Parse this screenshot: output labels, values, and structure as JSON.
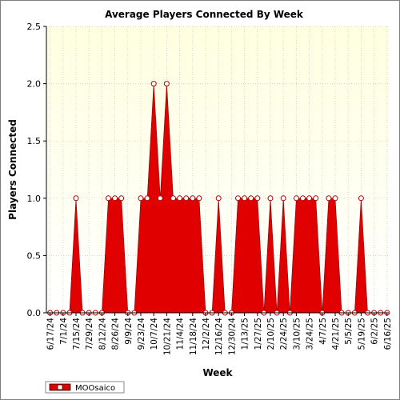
{
  "chart_data": {
    "type": "area",
    "title": "Average Players Connected By Week",
    "xlabel": "Week",
    "ylabel": "Players Connected",
    "ylim": [
      0,
      2.5
    ],
    "yticks": [
      "0.0",
      "0.5",
      "1.0",
      "1.5",
      "2.0",
      "2.5"
    ],
    "grid": true,
    "legend_position": "bottom-left",
    "colors": {
      "series": "#e00000",
      "marker_fill": "#ffffff",
      "plot_bg_top": "#ffffe4",
      "plot_bg_bottom": "#ffffff"
    },
    "x_ticks": [
      "6/17/24",
      "7/1/24",
      "7/15/24",
      "7/29/24",
      "8/12/24",
      "8/26/24",
      "9/9/24",
      "9/23/24",
      "10/7/24",
      "10/21/24",
      "11/4/24",
      "11/18/24",
      "12/2/24",
      "12/16/24",
      "12/30/24",
      "1/13/25",
      "1/27/25",
      "2/10/25",
      "2/24/25",
      "3/10/25",
      "3/24/25",
      "4/7/25",
      "4/21/25",
      "5/5/25",
      "5/19/25",
      "6/2/25",
      "6/16/25"
    ],
    "series": [
      {
        "name": "MOOsaico",
        "values": [
          0,
          0,
          0,
          0,
          1,
          0,
          0,
          0,
          0,
          1,
          1,
          1,
          0,
          0,
          1,
          1,
          2,
          1,
          2,
          1,
          1,
          1,
          1,
          1,
          0,
          0,
          1,
          0,
          0,
          1,
          1,
          1,
          1,
          0,
          1,
          0,
          1,
          0,
          1,
          1,
          1,
          1,
          0,
          1,
          1,
          0,
          0,
          0,
          1,
          0,
          0,
          0,
          0
        ]
      }
    ]
  }
}
